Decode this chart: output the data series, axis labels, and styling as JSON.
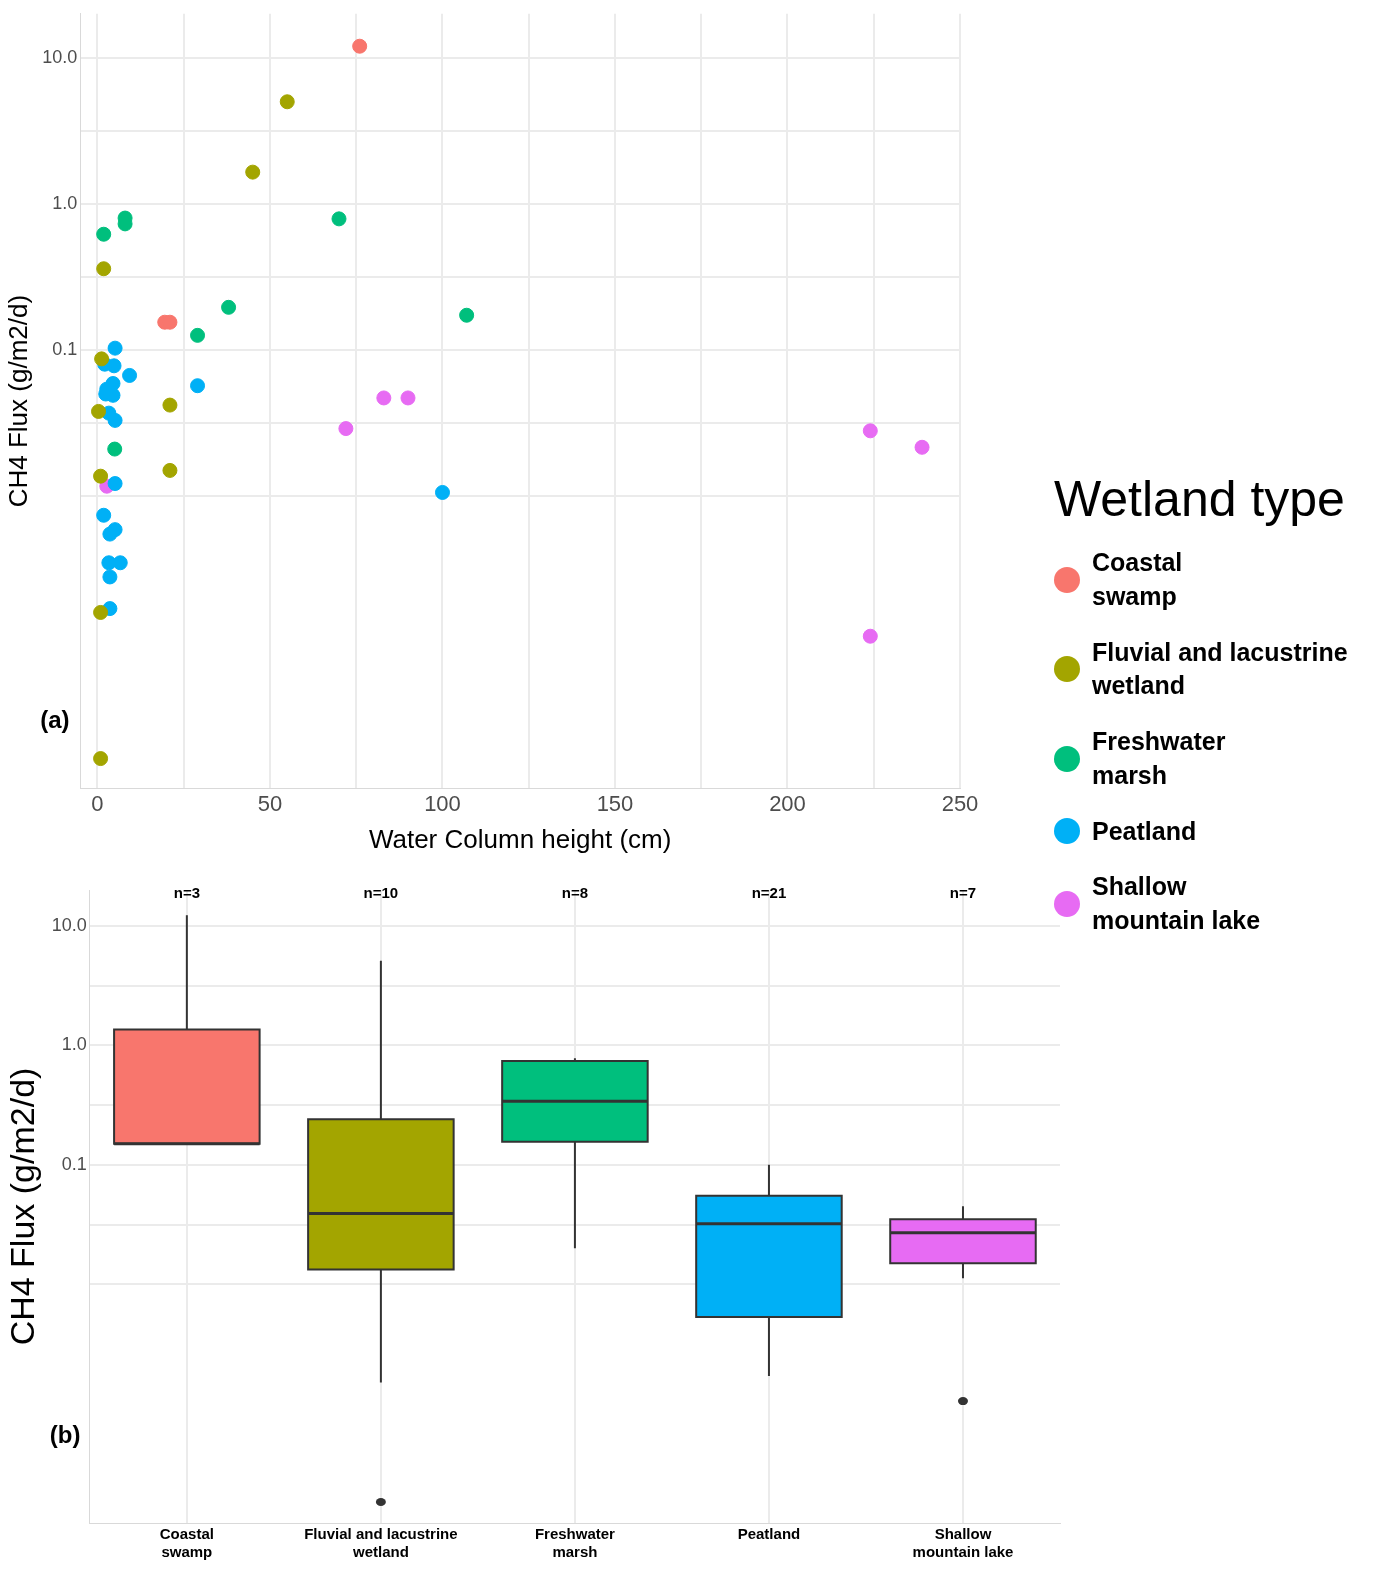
{
  "chart_data": [
    {
      "type": "scatter",
      "xlabel": "Water Column height (cm)",
      "ylabel": "CH4 Flux (g/m2/d)",
      "legend_title": "Wetland type",
      "legend": "right",
      "grid": true,
      "log": "y",
      "marker": "circle",
      "xlim": [
        -5,
        250
      ],
      "xticks": [
        0,
        {
          "value": 25,
          "label": null
        },
        50,
        {
          "value": 75,
          "label": null
        },
        100,
        {
          "value": 125,
          "label": null
        },
        150,
        {
          "value": 175,
          "label": null
        },
        200,
        {
          "value": 225,
          "label": null
        },
        250
      ],
      "ylim": [
        0.0001,
        20
      ],
      "yticks": [
        {
          "value": 0.01,
          "label": null
        },
        {
          "value": 0.0316,
          "label": null
        },
        0.1,
        {
          "value": 0.316,
          "label": null
        },
        {
          "value": 1,
          "label": "1.0"
        },
        {
          "value": 3.16,
          "label": null
        },
        {
          "value": 10,
          "label": "10.0"
        }
      ],
      "annotations": [
        "(a)"
      ],
      "series": [
        {
          "name": "Coastal\nswamp",
          "color": "#f8766d",
          "x": [
            76,
            19.5,
            21
          ],
          "values": [
            12,
            0.155,
            0.155
          ]
        },
        {
          "name": "Fluvial and lacustrine\nwetland",
          "color": "#a3a500",
          "x": [
            55,
            45,
            1.8,
            1.2,
            0.3,
            21,
            0.9,
            21,
            0.9,
            0.9
          ],
          "values": [
            5,
            1.65,
            0.36,
            0.087,
            0.038,
            0.042,
            0.0137,
            0.015,
            0.0016,
            0.00016
          ]
        },
        {
          "name": "Freshwater\nmarsh",
          "color": "#00bf7d",
          "x": [
            8,
            8,
            1.8,
            70,
            38,
            29,
            107,
            5
          ],
          "values": [
            0.8,
            0.73,
            0.62,
            0.79,
            0.196,
            0.126,
            0.173,
            0.021
          ]
        },
        {
          "name": "Peatland",
          "color": "#00b0f6",
          "x": [
            5.1,
            4.8,
            9.3,
            4.5,
            2.4,
            4.5,
            3.3,
            5.1,
            5.1,
            1.8,
            5.1,
            3.6,
            3.3,
            6.6,
            3.6,
            3.6,
            29,
            100,
            2.7,
            2.1
          ],
          "values": [
            0.103,
            0.078,
            0.067,
            0.059,
            0.05,
            0.049,
            0.037,
            0.033,
            0.0122,
            0.0074,
            0.0059,
            0.0055,
            0.0035,
            0.0035,
            0.0028,
            0.0017,
            0.057,
            0.0106,
            0.054,
            0.08
          ]
        },
        {
          "name": "Shallow\nmountain lake",
          "color": "#e76bf3",
          "x": [
            83,
            90,
            72,
            224,
            239,
            2.7,
            224
          ],
          "values": [
            0.047,
            0.047,
            0.029,
            0.028,
            0.0216,
            0.0117,
            0.0011
          ]
        }
      ]
    },
    {
      "type": "box",
      "ylabel": "CH4 Flux (g/m2/d)",
      "grid": true,
      "log": "y",
      "categories": [
        "Coastal\nswamp",
        "Fluvial and lacustrine\nwetland",
        "Freshwater\nmarsh",
        "Peatland",
        "Shallow\nmountain lake"
      ],
      "colors": [
        "#f8766d",
        "#a3a500",
        "#00bf7d",
        "#00b0f6",
        "#e76bf3"
      ],
      "ylim": [
        0.0001,
        20
      ],
      "yticks": [
        {
          "value": 0.01,
          "label": null
        },
        {
          "value": 0.0316,
          "label": null
        },
        0.1,
        {
          "value": 0.316,
          "label": null
        },
        {
          "value": 1,
          "label": "1.0"
        },
        {
          "value": 3.16,
          "label": null
        },
        {
          "value": 10,
          "label": "10.0"
        }
      ],
      "boxes": [
        {
          "low": 0.15,
          "q1": 0.15,
          "median": 0.15,
          "q3": 1.36,
          "high": 12.3
        },
        {
          "low": 0.0015,
          "q1": 0.0133,
          "median": 0.039,
          "q3": 0.24,
          "high": 5.1,
          "outliers": [
            0.00015
          ]
        },
        {
          "low": 0.02,
          "q1": 0.156,
          "median": 0.34,
          "q3": 0.74,
          "high": 0.78
        },
        {
          "low": 0.0017,
          "q1": 0.0053,
          "median": 0.032,
          "q3": 0.055,
          "high": 0.1
        },
        {
          "low": 0.0112,
          "q1": 0.015,
          "median": 0.027,
          "q3": 0.035,
          "high": 0.045,
          "outliers": [
            0.00105
          ]
        }
      ],
      "annotations": [
        "(b)",
        "n=3",
        "n=10",
        "n=8",
        "n=21",
        "n=7"
      ]
    }
  ]
}
